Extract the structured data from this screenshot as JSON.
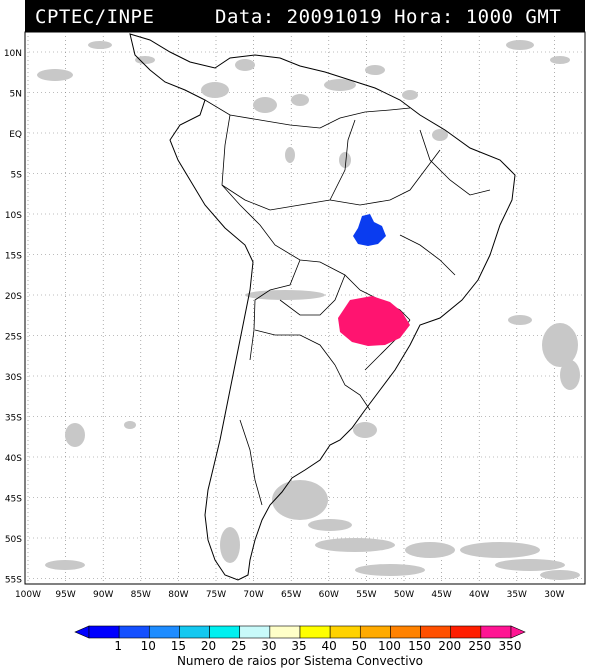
{
  "header": {
    "agency": "CPTEC/INPE",
    "datetime": "Data: 20091019 Hora: 1000 GMT"
  },
  "map": {
    "lat_labels": [
      "10N",
      "5N",
      "EQ",
      "5S",
      "10S",
      "15S",
      "20S",
      "25S",
      "30S",
      "35S",
      "40S",
      "45S",
      "50S",
      "55S"
    ],
    "lon_labels": [
      "100W",
      "95W",
      "90W",
      "85W",
      "80W",
      "75W",
      "70W",
      "65W",
      "60W",
      "55W",
      "50W",
      "45W",
      "40W",
      "35W",
      "30W"
    ],
    "systems": [
      {
        "name": "cluster-central-brazil",
        "value_class": "1",
        "color": "#0a3cf0"
      },
      {
        "name": "cluster-south-brazil",
        "value_class": "350",
        "color": "#ff1470"
      }
    ],
    "cloud_color": "#c8c8c8"
  },
  "colorbar": {
    "values": [
      "1",
      "10",
      "15",
      "20",
      "25",
      "30",
      "35",
      "40",
      "50",
      "100",
      "150",
      "200",
      "250",
      "350"
    ],
    "colors": [
      "#0000ff",
      "#1450ff",
      "#1e8cff",
      "#14c8f0",
      "#00f0f0",
      "#c8fafa",
      "#ffffc8",
      "#ffff00",
      "#ffd200",
      "#ffaa00",
      "#ff8200",
      "#ff5000",
      "#ff1e00",
      "#ff1493"
    ],
    "caption": "Numero de raios por Sistema Convectivo"
  }
}
